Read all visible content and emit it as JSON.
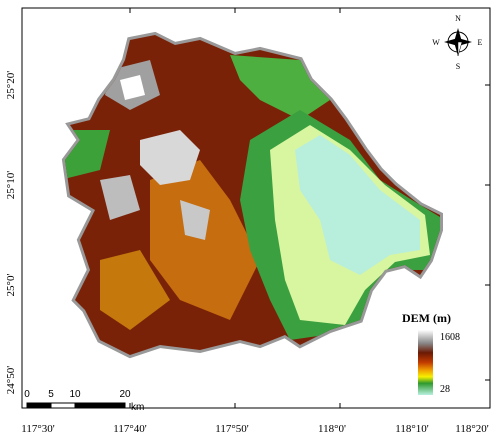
{
  "map": {
    "x_axis_labels": [
      "117°30'",
      "117°40'",
      "117°50'",
      "118°0'",
      "118°10'",
      "118°20'"
    ],
    "y_axis_labels": [
      "25°20'",
      "25°10'",
      "25°0'",
      "24°50'"
    ],
    "compass": {
      "north": "N",
      "south": "S",
      "west": "W",
      "east": "E"
    },
    "legend": {
      "title": "DEM (m)",
      "max": 1608,
      "min": 28
    },
    "scale_bar": {
      "labels": [
        0,
        5,
        10,
        20
      ],
      "unit": "km"
    }
  }
}
